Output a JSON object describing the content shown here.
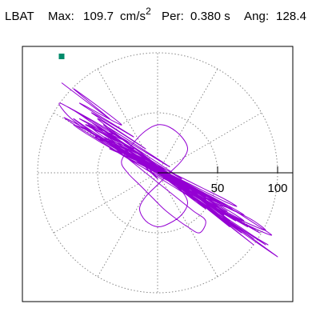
{
  "header": {
    "station": "LBAT",
    "max_label": "Max:",
    "max_value": "109.7",
    "max_unit": "cm/s",
    "max_unit_exp": "2",
    "per_label": "Per:",
    "per_value": "0.380 s",
    "ang_label": "Ang:",
    "ang_value": "128.4"
  },
  "chart_data": {
    "type": "polar-particle-motion",
    "max": 109.7,
    "period_s": 0.38,
    "angle_deg": 128.4,
    "radial_ticks": [
      50,
      100
    ],
    "radial_max": 100,
    "grid": "dotted",
    "spokes_deg": [
      0,
      30,
      60,
      90,
      120,
      150,
      180,
      210,
      240,
      270,
      300,
      330
    ],
    "trace_color": "#9400d3",
    "marker_color": "#008b6b",
    "trace": [
      [
        -80,
        75
      ],
      [
        -40,
        45
      ],
      [
        -70,
        70
      ],
      [
        -30,
        40
      ],
      [
        -65,
        58
      ],
      [
        -20,
        30
      ],
      [
        -55,
        50
      ],
      [
        -10,
        20
      ],
      [
        -50,
        45
      ],
      [
        -5,
        10
      ],
      [
        -45,
        40
      ],
      [
        10,
        5
      ],
      [
        -40,
        35
      ],
      [
        20,
        -5
      ],
      [
        -30,
        25
      ],
      [
        30,
        -15
      ],
      [
        -20,
        18
      ],
      [
        40,
        -20
      ],
      [
        -10,
        10
      ],
      [
        50,
        -30
      ],
      [
        0,
        5
      ],
      [
        60,
        -40
      ],
      [
        10,
        -2
      ],
      [
        70,
        -50
      ],
      [
        15,
        -10
      ],
      [
        80,
        -55
      ],
      [
        20,
        -15
      ],
      [
        90,
        -60
      ],
      [
        25,
        -18
      ],
      [
        100,
        -70
      ],
      [
        30,
        -20
      ],
      [
        80,
        -60
      ],
      [
        20,
        -12
      ],
      [
        60,
        -45
      ],
      [
        10,
        -5
      ],
      [
        40,
        -30
      ],
      [
        0,
        0
      ],
      [
        20,
        -15
      ],
      [
        -10,
        8
      ],
      [
        0,
        -5
      ],
      [
        -20,
        15
      ],
      [
        -5,
        2
      ],
      [
        -30,
        22
      ],
      [
        -10,
        10
      ],
      [
        -45,
        30
      ],
      [
        -15,
        15
      ],
      [
        -55,
        38
      ],
      [
        -20,
        20
      ],
      [
        -65,
        45
      ],
      [
        -30,
        28
      ],
      [
        -75,
        55
      ],
      [
        -35,
        32
      ],
      [
        -60,
        40
      ],
      [
        -25,
        22
      ],
      [
        -50,
        30
      ],
      [
        -15,
        12
      ],
      [
        -40,
        20
      ],
      [
        -5,
        5
      ],
      [
        -30,
        15
      ],
      [
        5,
        -2
      ],
      [
        -20,
        10
      ],
      [
        15,
        -8
      ],
      [
        -10,
        5
      ],
      [
        25,
        -15
      ],
      [
        0,
        0
      ],
      [
        35,
        -20
      ],
      [
        10,
        -5
      ],
      [
        45,
        -28
      ],
      [
        20,
        -10
      ],
      [
        55,
        -35
      ],
      [
        30,
        -18
      ],
      [
        65,
        -40
      ],
      [
        40,
        -25
      ],
      [
        75,
        -45
      ],
      [
        50,
        -30
      ],
      [
        85,
        -50
      ],
      [
        60,
        -35
      ],
      [
        70,
        -42
      ],
      [
        45,
        -28
      ],
      [
        55,
        -33
      ],
      [
        30,
        -18
      ],
      [
        40,
        -22
      ],
      [
        15,
        -8
      ],
      [
        25,
        -12
      ],
      [
        0,
        0
      ],
      [
        10,
        -3
      ],
      [
        -15,
        8
      ],
      [
        -5,
        3
      ],
      [
        -30,
        18
      ],
      [
        -20,
        12
      ],
      [
        -45,
        28
      ],
      [
        -35,
        22
      ],
      [
        -60,
        38
      ],
      [
        -50,
        30
      ],
      [
        -70,
        45
      ],
      [
        -55,
        35
      ],
      [
        -40,
        25
      ],
      [
        -25,
        15
      ],
      [
        -10,
        5
      ],
      [
        5,
        -3
      ],
      [
        20,
        -10
      ],
      [
        35,
        -18
      ],
      [
        50,
        -25
      ],
      [
        65,
        -32
      ],
      [
        80,
        -40
      ],
      [
        90,
        -48
      ],
      [
        75,
        -42
      ],
      [
        60,
        -35
      ],
      [
        45,
        -26
      ],
      [
        30,
        -18
      ],
      [
        15,
        -10
      ],
      [
        0,
        -2
      ],
      [
        -15,
        6
      ],
      [
        -30,
        15
      ],
      [
        -45,
        24
      ],
      [
        -60,
        33
      ],
      [
        -70,
        40
      ],
      [
        -60,
        36
      ],
      [
        -45,
        28
      ],
      [
        -30,
        20
      ],
      [
        -15,
        12
      ],
      [
        0,
        4
      ],
      [
        15,
        -4
      ],
      [
        30,
        -12
      ],
      [
        45,
        -20
      ],
      [
        60,
        -28
      ],
      [
        72,
        -35
      ],
      [
        60,
        -30
      ],
      [
        45,
        -22
      ],
      [
        30,
        -14
      ],
      [
        15,
        -6
      ],
      [
        0,
        2
      ],
      [
        -15,
        10
      ],
      [
        -30,
        18
      ],
      [
        -40,
        24
      ],
      [
        -30,
        16
      ],
      [
        -20,
        8
      ],
      [
        -10,
        0
      ],
      [
        0,
        -8
      ],
      [
        10,
        -16
      ],
      [
        20,
        -24
      ],
      [
        30,
        -32
      ],
      [
        40,
        -40
      ],
      [
        35,
        -50
      ],
      [
        25,
        -45
      ],
      [
        15,
        -38
      ],
      [
        5,
        -30
      ],
      [
        -5,
        -20
      ],
      [
        -15,
        -10
      ],
      [
        -25,
        0
      ],
      [
        -30,
        10
      ],
      [
        -20,
        25
      ],
      [
        -10,
        35
      ],
      [
        0,
        40
      ],
      [
        10,
        38
      ],
      [
        20,
        30
      ],
      [
        25,
        20
      ],
      [
        20,
        10
      ],
      [
        10,
        0
      ],
      [
        0,
        -10
      ],
      [
        -10,
        -20
      ],
      [
        -15,
        -30
      ],
      [
        -10,
        -40
      ],
      [
        0,
        -45
      ],
      [
        10,
        -42
      ],
      [
        20,
        -35
      ],
      [
        25,
        -25
      ],
      [
        20,
        -15
      ],
      [
        10,
        -5
      ],
      [
        0,
        5
      ],
      [
        -15,
        15
      ],
      [
        -30,
        25
      ],
      [
        -45,
        35
      ],
      [
        -55,
        42
      ],
      [
        -45,
        36
      ],
      [
        -30,
        26
      ],
      [
        -15,
        16
      ],
      [
        0,
        6
      ],
      [
        15,
        -4
      ],
      [
        30,
        -14
      ],
      [
        45,
        -24
      ],
      [
        58,
        -32
      ],
      [
        48,
        -26
      ],
      [
        35,
        -18
      ],
      [
        20,
        -10
      ],
      [
        5,
        -2
      ],
      [
        -10,
        6
      ],
      [
        -25,
        14
      ],
      [
        -38,
        22
      ],
      [
        -25,
        16
      ],
      [
        -10,
        8
      ],
      [
        5,
        0
      ],
      [
        20,
        -8
      ],
      [
        35,
        -16
      ],
      [
        50,
        -24
      ],
      [
        62,
        -30
      ],
      [
        50,
        -26
      ],
      [
        38,
        -20
      ],
      [
        25,
        -12
      ],
      [
        10,
        -4
      ],
      [
        -5,
        4
      ],
      [
        -20,
        12
      ],
      [
        -35,
        20
      ],
      [
        -48,
        28
      ],
      [
        -35,
        22
      ],
      [
        -20,
        14
      ],
      [
        -5,
        6
      ],
      [
        10,
        -2
      ],
      [
        25,
        -10
      ],
      [
        40,
        -18
      ],
      [
        55,
        -26
      ],
      [
        68,
        -34
      ],
      [
        85,
        -45
      ],
      [
        95,
        -52
      ],
      [
        80,
        -46
      ],
      [
        60,
        -36
      ],
      [
        40,
        -24
      ],
      [
        20,
        -12
      ],
      [
        0,
        0
      ],
      [
        -20,
        12
      ],
      [
        -40,
        24
      ],
      [
        -60,
        36
      ],
      [
        -75,
        48
      ],
      [
        -82,
        58
      ],
      [
        -70,
        52
      ],
      [
        -55,
        42
      ],
      [
        -40,
        32
      ],
      [
        -25,
        22
      ],
      [
        -10,
        12
      ],
      [
        5,
        2
      ],
      [
        20,
        -8
      ],
      [
        35,
        -18
      ],
      [
        50,
        -28
      ],
      [
        60,
        -36
      ],
      [
        50,
        -32
      ],
      [
        38,
        -24
      ],
      [
        25,
        -16
      ],
      [
        12,
        -8
      ],
      [
        0,
        0
      ],
      [
        -12,
        8
      ],
      [
        -24,
        16
      ],
      [
        -36,
        24
      ],
      [
        -48,
        32
      ],
      [
        -58,
        40
      ],
      [
        -48,
        34
      ],
      [
        -36,
        26
      ],
      [
        -24,
        18
      ],
      [
        -12,
        10
      ],
      [
        0,
        2
      ],
      [
        12,
        -6
      ],
      [
        24,
        -14
      ],
      [
        36,
        -22
      ],
      [
        48,
        -30
      ],
      [
        58,
        -38
      ],
      [
        70,
        -46
      ],
      [
        82,
        -54
      ],
      [
        92,
        -60
      ],
      [
        78,
        -52
      ],
      [
        62,
        -42
      ],
      [
        46,
        -32
      ],
      [
        30,
        -22
      ],
      [
        14,
        -12
      ],
      [
        -2,
        -2
      ],
      [
        -18,
        8
      ],
      [
        -34,
        18
      ],
      [
        -50,
        28
      ],
      [
        -66,
        38
      ],
      [
        -78,
        46
      ],
      [
        -66,
        40
      ],
      [
        -52,
        32
      ],
      [
        -38,
        24
      ],
      [
        -24,
        16
      ],
      [
        -10,
        8
      ],
      [
        4,
        0
      ],
      [
        18,
        -8
      ],
      [
        32,
        -16
      ],
      [
        46,
        -24
      ],
      [
        60,
        -32
      ],
      [
        72,
        -40
      ],
      [
        60,
        -34
      ],
      [
        46,
        -26
      ],
      [
        32,
        -18
      ],
      [
        18,
        -10
      ],
      [
        4,
        -2
      ],
      [
        -10,
        6
      ],
      [
        -24,
        14
      ],
      [
        -38,
        22
      ],
      [
        -52,
        30
      ],
      [
        -40,
        26
      ],
      [
        -28,
        20
      ],
      [
        -16,
        14
      ],
      [
        -4,
        8
      ],
      [
        8,
        2
      ],
      [
        20,
        -4
      ],
      [
        32,
        -10
      ],
      [
        44,
        -16
      ],
      [
        56,
        -22
      ],
      [
        66,
        -28
      ],
      [
        56,
        -24
      ],
      [
        44,
        -18
      ],
      [
        32,
        -12
      ],
      [
        20,
        -6
      ],
      [
        8,
        0
      ],
      [
        -4,
        6
      ],
      [
        -16,
        12
      ],
      [
        -28,
        18
      ],
      [
        -40,
        24
      ],
      [
        -30,
        18
      ],
      [
        -20,
        12
      ],
      [
        -10,
        6
      ],
      [
        0,
        0
      ]
    ],
    "marker": [
      -80,
      97
    ]
  }
}
